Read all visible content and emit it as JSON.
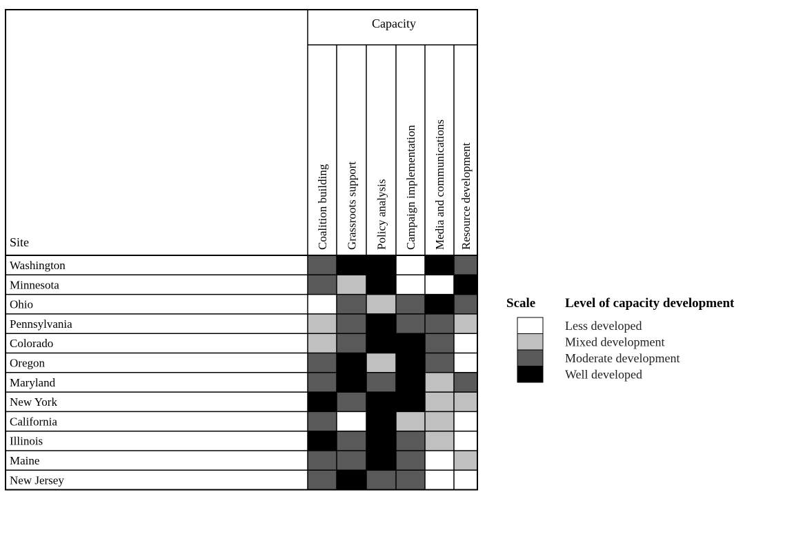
{
  "chart_data": {
    "type": "heatmap",
    "title": "",
    "group_header": "Capacity",
    "row_header": "Site",
    "columns": [
      "Coalition building",
      "Grassroots support",
      "Policy analysis",
      "Campaign implementation",
      "Media and communications",
      "Resource development"
    ],
    "rows": [
      "Washington",
      "Minnesota",
      "Ohio",
      "Pennsylvania",
      "Colorado",
      "Oregon",
      "Maryland",
      "New York",
      "California",
      "Illinois",
      "Maine",
      "New Jersey"
    ],
    "values": [
      [
        3,
        4,
        4,
        1,
        4,
        3
      ],
      [
        3,
        2,
        4,
        1,
        1,
        4
      ],
      [
        1,
        3,
        2,
        3,
        4,
        3
      ],
      [
        2,
        3,
        4,
        3,
        3,
        2
      ],
      [
        2,
        3,
        4,
        4,
        3,
        1
      ],
      [
        3,
        4,
        2,
        4,
        3,
        1
      ],
      [
        3,
        4,
        3,
        4,
        2,
        3
      ],
      [
        4,
        3,
        4,
        4,
        2,
        2
      ],
      [
        3,
        1,
        4,
        2,
        2,
        1
      ],
      [
        4,
        3,
        4,
        3,
        2,
        1
      ],
      [
        3,
        3,
        4,
        3,
        1,
        2
      ],
      [
        3,
        4,
        3,
        3,
        1,
        1
      ]
    ],
    "scale": {
      "label": "Scale",
      "title": "Level of capacity development",
      "levels": [
        {
          "value": 1,
          "label": "Less developed",
          "color": "#ffffff"
        },
        {
          "value": 2,
          "label": "Mixed development",
          "color": "#c0c0c0"
        },
        {
          "value": 3,
          "label": "Moderate development",
          "color": "#595959"
        },
        {
          "value": 4,
          "label": "Well developed",
          "color": "#000000"
        }
      ]
    }
  }
}
